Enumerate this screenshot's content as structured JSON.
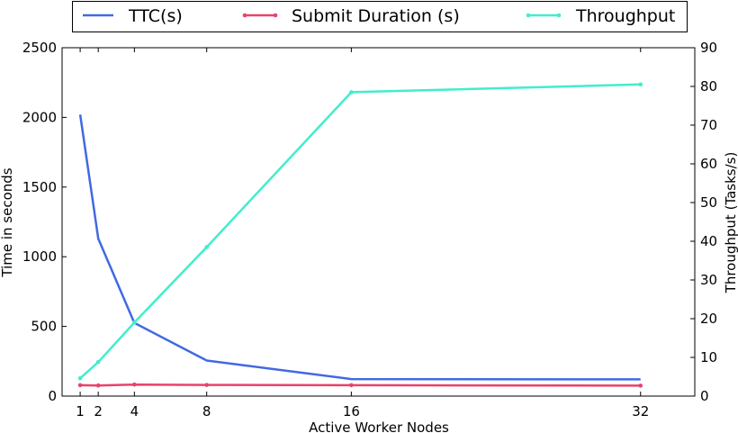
{
  "chart_data": {
    "type": "line",
    "title": "",
    "xlabel": "Active Worker Nodes",
    "ylabel": "Time in seconds",
    "y2label": "Throughput (Tasks/s)",
    "x": [
      1,
      2,
      4,
      8,
      16,
      32
    ],
    "x_ticks": [
      1,
      2,
      4,
      8,
      16,
      32
    ],
    "x_tick_labels": [
      "1",
      "2",
      "4",
      "8",
      "16",
      "32"
    ],
    "xlim": [
      0,
      35
    ],
    "ylim": [
      0,
      2500
    ],
    "y_ticks": [
      0,
      500,
      1000,
      1500,
      2000,
      2500
    ],
    "y_tick_labels": [
      "0",
      "500",
      "1000",
      "1500",
      "2000",
      "2500"
    ],
    "y2lim": [
      0,
      90
    ],
    "y2_ticks": [
      0,
      10,
      20,
      30,
      40,
      50,
      60,
      70,
      80,
      90
    ],
    "y2_tick_labels": [
      "0",
      "10",
      "20",
      "30",
      "40",
      "50",
      "60",
      "70",
      "80",
      "90"
    ],
    "grid": false,
    "legend_position": "top",
    "series": [
      {
        "name": "TTC(s)",
        "axis": "left",
        "color": "#4169e1",
        "markers": false,
        "values": [
          2020,
          1130,
          525,
          255,
          122,
          120
        ]
      },
      {
        "name": "Submit Duration (s)",
        "axis": "left",
        "color": "#e8436a",
        "markers": true,
        "values": [
          78,
          76,
          83,
          80,
          78,
          75
        ]
      },
      {
        "name": "Throughput",
        "axis": "right",
        "color": "#40eecc",
        "markers": true,
        "values": [
          4.6,
          8.8,
          19.0,
          38.5,
          78.5,
          80.5
        ]
      }
    ]
  }
}
